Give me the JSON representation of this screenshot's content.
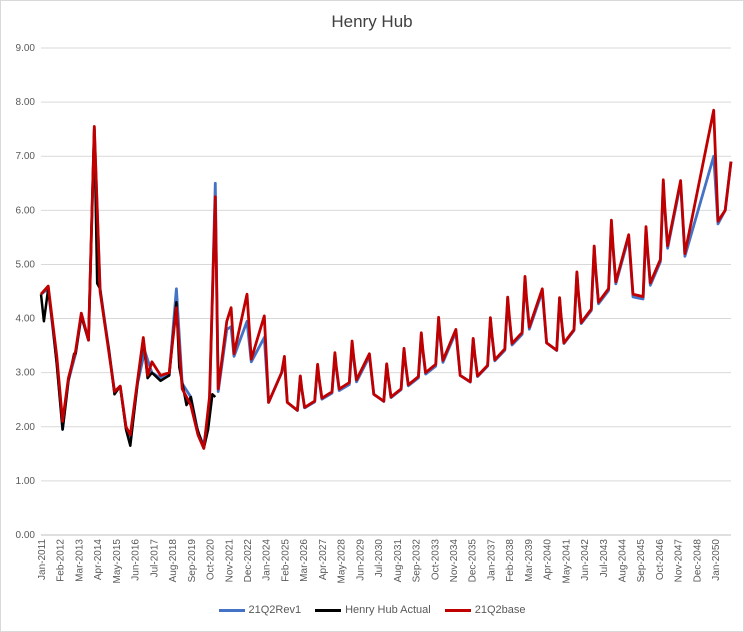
{
  "chart_data": {
    "type": "line",
    "title": "Henry Hub",
    "xlabel": "",
    "ylabel": "",
    "ylim": [
      0,
      9
    ],
    "yticks": [
      "0.00",
      "1.00",
      "2.00",
      "3.00",
      "4.00",
      "5.00",
      "6.00",
      "7.00",
      "8.00",
      "9.00"
    ],
    "x_range": [
      "2011-01",
      "2050-12"
    ],
    "x_tick_labels": [
      "Jan-2011",
      "Feb-2012",
      "Mar-2013",
      "Apr-2014",
      "May-2015",
      "Jun-2016",
      "Jul-2017",
      "Aug-2018",
      "Sep-2019",
      "Oct-2020",
      "Nov-2021",
      "Dec-2022",
      "Jan-2024",
      "Feb-2025",
      "Mar-2026",
      "Apr-2027",
      "May-2028",
      "Jun-2029",
      "Jul-2030",
      "Aug-2031",
      "Sep-2032",
      "Oct-2033",
      "Nov-2034",
      "Dec-2035",
      "Jan-2037",
      "Feb-2038",
      "Mar-2039",
      "Apr-2040",
      "May-2041",
      "Jun-2042",
      "Jul-2043",
      "Aug-2044",
      "Sep-2045",
      "Oct-2046",
      "Nov-2047",
      "Dec-2048",
      "Jan-2050"
    ],
    "grid": "horizontal",
    "legend_position": "bottom",
    "series": [
      {
        "name": "21Q2Rev1",
        "color": "#4472c4",
        "points": [
          [
            "2011-01",
            4.45
          ],
          [
            "2011-06",
            4.55
          ],
          [
            "2011-12",
            3.2
          ],
          [
            "2012-04",
            1.95
          ],
          [
            "2012-08",
            2.85
          ],
          [
            "2013-01",
            3.35
          ],
          [
            "2013-05",
            4.05
          ],
          [
            "2013-10",
            3.6
          ],
          [
            "2014-02",
            7.5
          ],
          [
            "2014-06",
            4.55
          ],
          [
            "2014-12",
            3.45
          ],
          [
            "2015-04",
            2.65
          ],
          [
            "2015-08",
            2.75
          ],
          [
            "2015-12",
            2.0
          ],
          [
            "2016-03",
            1.75
          ],
          [
            "2016-08",
            2.8
          ],
          [
            "2017-01",
            3.4
          ],
          [
            "2017-06",
            3.0
          ],
          [
            "2017-12",
            2.9
          ],
          [
            "2018-06",
            2.95
          ],
          [
            "2018-11",
            4.55
          ],
          [
            "2019-03",
            2.8
          ],
          [
            "2019-09",
            2.55
          ],
          [
            "2020-02",
            1.9
          ],
          [
            "2020-06",
            1.65
          ],
          [
            "2020-10",
            2.4
          ],
          [
            "2021-02",
            6.5
          ],
          [
            "2021-04",
            2.65
          ],
          [
            "2021-10",
            3.8
          ],
          [
            "2022-01",
            3.85
          ],
          [
            "2022-03",
            3.3
          ],
          [
            "2022-12",
            3.95
          ],
          [
            "2023-03",
            3.2
          ],
          [
            "2023-12",
            3.65
          ],
          [
            "2024-03",
            2.45
          ],
          [
            "2024-12",
            3.0
          ],
          [
            "2025-02",
            3.2
          ],
          [
            "2025-04",
            2.45
          ],
          [
            "2030-01",
            3.3
          ],
          [
            "2030-04",
            2.6
          ],
          [
            "2035-01",
            3.75
          ],
          [
            "2035-04",
            2.95
          ],
          [
            "2040-01",
            4.5
          ],
          [
            "2040-04",
            3.55
          ],
          [
            "2045-01",
            5.5
          ],
          [
            "2045-04",
            4.4
          ],
          [
            "2048-01",
            6.5
          ],
          [
            "2048-04",
            5.15
          ],
          [
            "2049-12",
            7.0
          ],
          [
            "2050-03",
            5.75
          ],
          [
            "2050-08",
            6.0
          ],
          [
            "2050-12",
            6.9
          ]
        ]
      },
      {
        "name": "Henry Hub Actual",
        "color": "#000000",
        "points": [
          [
            "2011-01",
            4.45
          ],
          [
            "2011-03",
            3.95
          ],
          [
            "2011-06",
            4.55
          ],
          [
            "2011-09",
            3.9
          ],
          [
            "2011-12",
            3.15
          ],
          [
            "2012-04",
            1.95
          ],
          [
            "2012-08",
            2.85
          ],
          [
            "2012-12",
            3.35
          ],
          [
            "2013-01",
            3.35
          ],
          [
            "2013-05",
            4.05
          ],
          [
            "2013-10",
            3.6
          ],
          [
            "2014-02",
            7.55
          ],
          [
            "2014-04",
            4.65
          ],
          [
            "2014-06",
            4.55
          ],
          [
            "2014-09",
            3.95
          ],
          [
            "2014-12",
            3.45
          ],
          [
            "2015-04",
            2.6
          ],
          [
            "2015-08",
            2.75
          ],
          [
            "2015-12",
            1.95
          ],
          [
            "2016-03",
            1.65
          ],
          [
            "2016-08",
            2.8
          ],
          [
            "2016-12",
            3.6
          ],
          [
            "2017-03",
            2.9
          ],
          [
            "2017-06",
            3.0
          ],
          [
            "2017-12",
            2.85
          ],
          [
            "2018-06",
            2.95
          ],
          [
            "2018-11",
            4.3
          ],
          [
            "2019-01",
            3.1
          ],
          [
            "2019-06",
            2.4
          ],
          [
            "2019-09",
            2.55
          ],
          [
            "2020-01",
            2.0
          ],
          [
            "2020-06",
            1.6
          ],
          [
            "2020-09",
            1.95
          ],
          [
            "2020-12",
            2.6
          ],
          [
            "2021-02",
            2.55
          ]
        ]
      },
      {
        "name": "21Q2base",
        "color": "#c00000",
        "points": [
          [
            "2011-01",
            4.45
          ],
          [
            "2011-06",
            4.6
          ],
          [
            "2011-12",
            3.3
          ],
          [
            "2012-04",
            2.1
          ],
          [
            "2012-08",
            2.9
          ],
          [
            "2013-01",
            3.4
          ],
          [
            "2013-05",
            4.1
          ],
          [
            "2013-10",
            3.6
          ],
          [
            "2014-02",
            7.55
          ],
          [
            "2014-06",
            4.5
          ],
          [
            "2014-12",
            3.4
          ],
          [
            "2015-04",
            2.65
          ],
          [
            "2015-08",
            2.75
          ],
          [
            "2015-12",
            2.0
          ],
          [
            "2016-03",
            1.85
          ],
          [
            "2016-08",
            2.85
          ],
          [
            "2016-12",
            3.65
          ],
          [
            "2017-03",
            2.95
          ],
          [
            "2017-06",
            3.2
          ],
          [
            "2017-12",
            2.95
          ],
          [
            "2018-06",
            3.0
          ],
          [
            "2018-11",
            4.2
          ],
          [
            "2019-03",
            2.7
          ],
          [
            "2019-09",
            2.4
          ],
          [
            "2020-02",
            1.85
          ],
          [
            "2020-06",
            1.6
          ],
          [
            "2020-10",
            2.55
          ],
          [
            "2021-02",
            6.25
          ],
          [
            "2021-04",
            2.7
          ],
          [
            "2021-10",
            3.95
          ],
          [
            "2022-01",
            4.2
          ],
          [
            "2022-03",
            3.35
          ],
          [
            "2022-12",
            4.45
          ],
          [
            "2023-03",
            3.25
          ],
          [
            "2023-12",
            4.05
          ],
          [
            "2024-03",
            2.45
          ],
          [
            "2024-12",
            3.0
          ],
          [
            "2025-02",
            3.3
          ],
          [
            "2025-04",
            2.45
          ],
          [
            "2030-01",
            3.35
          ],
          [
            "2030-04",
            2.6
          ],
          [
            "2035-01",
            3.8
          ],
          [
            "2035-04",
            2.95
          ],
          [
            "2040-01",
            4.55
          ],
          [
            "2040-04",
            3.55
          ],
          [
            "2045-01",
            5.55
          ],
          [
            "2045-04",
            4.45
          ],
          [
            "2048-01",
            6.55
          ],
          [
            "2048-04",
            5.2
          ],
          [
            "2049-12",
            7.85
          ],
          [
            "2050-03",
            5.8
          ],
          [
            "2050-08",
            6.0
          ],
          [
            "2050-12",
            6.9
          ]
        ]
      }
    ]
  }
}
